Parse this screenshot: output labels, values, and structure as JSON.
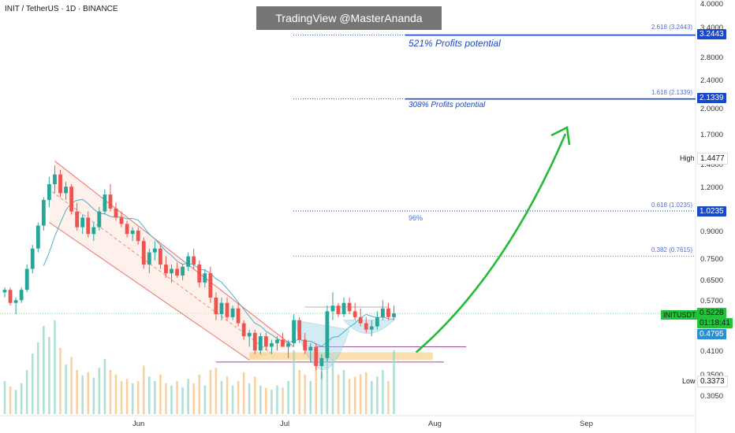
{
  "header": {
    "title": "INIT / TetherUS · 1D · BINANCE",
    "watermark": "TradingView @MasterAnanda"
  },
  "annotations": {
    "profit_521": "521% Profits potential",
    "profit_308": "308% Profits potential",
    "pct_96": "96%",
    "high_label": "High",
    "low_label": "Low",
    "symbol_label": "INITUSDT"
  },
  "colors": {
    "up": "#26a69a",
    "down": "#ef5350",
    "fib_blue": "#1848cc",
    "arrow_green": "#22bb33",
    "channel_red": "#f07070",
    "support_zone": "#f7c36b",
    "cup": "#5ab4d0"
  },
  "price_tags": {
    "fib_2618": "3.2443",
    "fib_1618": "2.1339",
    "fib_0618": "1.0235",
    "high": "1.4477",
    "current": "0.5228",
    "countdown": "01:18:41",
    "ma": "0.4795",
    "low": "0.3373"
  },
  "fib_labels": {
    "l2618": "2.618 (3.2443)",
    "l1618": "1.618 (2.1339)",
    "l0618": "0.618 (1.0235)",
    "l0382": "0.382 (0.7615)"
  },
  "chart_data": {
    "type": "candlestick",
    "title": "INIT / TetherUS · 1D · BINANCE",
    "y_scale": "log",
    "ylim": [
      0.27,
      4.0
    ],
    "y_ticks": [
      "4.0000",
      "3.4000",
      "2.8000",
      "2.4000",
      "2.0000",
      "1.7000",
      "1.4000",
      "1.2000",
      "0.9000",
      "0.7500",
      "0.6500",
      "0.5700",
      "0.4100",
      "0.3500",
      "0.3050"
    ],
    "y_tick_values": [
      4.0,
      3.4,
      2.8,
      2.4,
      2.0,
      1.7,
      1.4,
      1.2,
      0.9,
      0.75,
      0.65,
      0.57,
      0.41,
      0.35,
      0.305
    ],
    "x_labels": [
      "Jun",
      "Jul",
      "Aug",
      "Sep"
    ],
    "fib_levels": [
      {
        "ratio": 2.618,
        "price": 3.2443
      },
      {
        "ratio": 1.618,
        "price": 2.1339
      },
      {
        "ratio": 0.618,
        "price": 1.0235
      },
      {
        "ratio": 0.382,
        "price": 0.7615
      }
    ],
    "high": 1.4477,
    "low": 0.3373,
    "last_price": 0.5228,
    "moving_average": 0.4795,
    "candles": [
      [
        0.6,
        0.62,
        0.58,
        0.61
      ],
      [
        0.61,
        0.62,
        0.55,
        0.56
      ],
      [
        0.56,
        0.58,
        0.52,
        0.57
      ],
      [
        0.57,
        0.62,
        0.56,
        0.61
      ],
      [
        0.61,
        0.72,
        0.6,
        0.7
      ],
      [
        0.7,
        0.82,
        0.68,
        0.8
      ],
      [
        0.8,
        0.95,
        0.78,
        0.93
      ],
      [
        0.93,
        1.12,
        0.9,
        1.1
      ],
      [
        1.1,
        1.28,
        1.05,
        1.22
      ],
      [
        1.22,
        1.38,
        1.15,
        1.3
      ],
      [
        1.3,
        1.34,
        1.12,
        1.15
      ],
      [
        1.15,
        1.24,
        1.1,
        1.2
      ],
      [
        1.2,
        1.22,
        1.0,
        1.02
      ],
      [
        1.02,
        1.08,
        0.9,
        0.92
      ],
      [
        0.92,
        1.0,
        0.88,
        0.98
      ],
      [
        0.98,
        1.02,
        0.86,
        0.88
      ],
      [
        0.88,
        0.95,
        0.84,
        0.92
      ],
      [
        0.92,
        1.05,
        0.9,
        1.02
      ],
      [
        1.02,
        1.18,
        1.0,
        1.14
      ],
      [
        1.14,
        1.22,
        1.02,
        1.04
      ],
      [
        1.04,
        1.08,
        0.96,
        0.98
      ],
      [
        0.98,
        1.02,
        0.92,
        0.94
      ],
      [
        0.94,
        0.96,
        0.86,
        0.88
      ],
      [
        0.88,
        0.92,
        0.84,
        0.9
      ],
      [
        0.9,
        0.92,
        0.82,
        0.84
      ],
      [
        0.84,
        0.86,
        0.7,
        0.72
      ],
      [
        0.72,
        0.8,
        0.68,
        0.78
      ],
      [
        0.78,
        0.84,
        0.74,
        0.8
      ],
      [
        0.8,
        0.82,
        0.7,
        0.72
      ],
      [
        0.72,
        0.76,
        0.66,
        0.68
      ],
      [
        0.68,
        0.72,
        0.64,
        0.7
      ],
      [
        0.7,
        0.73,
        0.66,
        0.67
      ],
      [
        0.67,
        0.72,
        0.65,
        0.71
      ],
      [
        0.71,
        0.78,
        0.69,
        0.76
      ],
      [
        0.76,
        0.8,
        0.7,
        0.72
      ],
      [
        0.72,
        0.74,
        0.62,
        0.64
      ],
      [
        0.64,
        0.7,
        0.62,
        0.68
      ],
      [
        0.68,
        0.71,
        0.56,
        0.58
      ],
      [
        0.58,
        0.6,
        0.5,
        0.52
      ],
      [
        0.52,
        0.58,
        0.5,
        0.56
      ],
      [
        0.56,
        0.58,
        0.5,
        0.51
      ],
      [
        0.51,
        0.55,
        0.5,
        0.54
      ],
      [
        0.54,
        0.56,
        0.48,
        0.49
      ],
      [
        0.49,
        0.5,
        0.44,
        0.45
      ],
      [
        0.45,
        0.47,
        0.42,
        0.46
      ],
      [
        0.46,
        0.47,
        0.4,
        0.41
      ],
      [
        0.41,
        0.46,
        0.4,
        0.45
      ],
      [
        0.45,
        0.46,
        0.41,
        0.42
      ],
      [
        0.42,
        0.44,
        0.4,
        0.43
      ],
      [
        0.43,
        0.45,
        0.41,
        0.44
      ],
      [
        0.44,
        0.46,
        0.42,
        0.42
      ],
      [
        0.42,
        0.44,
        0.39,
        0.43
      ],
      [
        0.43,
        0.52,
        0.42,
        0.5
      ],
      [
        0.5,
        0.51,
        0.43,
        0.44
      ],
      [
        0.44,
        0.46,
        0.4,
        0.41
      ],
      [
        0.41,
        0.43,
        0.38,
        0.42
      ],
      [
        0.42,
        0.43,
        0.36,
        0.37
      ],
      [
        0.37,
        0.4,
        0.34,
        0.39
      ],
      [
        0.39,
        0.55,
        0.38,
        0.53
      ],
      [
        0.53,
        0.6,
        0.5,
        0.55
      ],
      [
        0.55,
        0.56,
        0.51,
        0.52
      ],
      [
        0.52,
        0.58,
        0.51,
        0.56
      ],
      [
        0.56,
        0.58,
        0.52,
        0.53
      ],
      [
        0.53,
        0.56,
        0.5,
        0.51
      ],
      [
        0.51,
        0.54,
        0.48,
        0.49
      ],
      [
        0.49,
        0.51,
        0.46,
        0.47
      ],
      [
        0.47,
        0.5,
        0.45,
        0.48
      ],
      [
        0.48,
        0.53,
        0.47,
        0.51
      ],
      [
        0.51,
        0.57,
        0.5,
        0.54
      ],
      [
        0.54,
        0.56,
        0.5,
        0.51
      ],
      [
        0.51,
        0.55,
        0.5,
        0.5228
      ]
    ],
    "volumes": [
      0.3,
      0.25,
      0.22,
      0.28,
      0.4,
      0.55,
      0.65,
      0.8,
      0.7,
      0.85,
      0.6,
      0.45,
      0.52,
      0.4,
      0.35,
      0.38,
      0.33,
      0.42,
      0.5,
      0.4,
      0.36,
      0.3,
      0.32,
      0.28,
      0.3,
      0.44,
      0.34,
      0.3,
      0.36,
      0.28,
      0.26,
      0.3,
      0.24,
      0.32,
      0.28,
      0.36,
      0.26,
      0.4,
      0.42,
      0.3,
      0.34,
      0.26,
      0.3,
      0.38,
      0.28,
      0.34,
      0.26,
      0.24,
      0.22,
      0.26,
      0.24,
      0.3,
      0.58,
      0.4,
      0.36,
      0.3,
      0.45,
      0.38,
      0.62,
      0.5,
      0.36,
      0.4,
      0.32,
      0.34,
      0.36,
      0.38,
      0.3,
      0.34,
      0.4,
      0.3,
      0.58
    ]
  }
}
